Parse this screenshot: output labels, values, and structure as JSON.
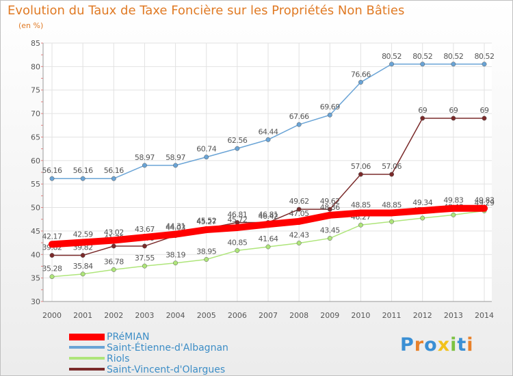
{
  "chart_data": {
    "type": "line",
    "title": "Evolution du Taux de Taxe Foncière sur les Propriétés Non Bâties",
    "subtitle": "(en %)",
    "xlabel": "",
    "ylabel": "",
    "x": [
      "2000",
      "2001",
      "2002",
      "2003",
      "2004",
      "2005",
      "2006",
      "2007",
      "2008",
      "2009",
      "2010",
      "2011",
      "2012",
      "2013",
      "2014"
    ],
    "ylim": [
      30,
      85
    ],
    "yticks": [
      30,
      35,
      40,
      45,
      50,
      55,
      60,
      65,
      70,
      75,
      80,
      85
    ],
    "grid": true,
    "legend_position": "bottom-left",
    "series": [
      {
        "name": "PRéMIAN",
        "color": "#ff0000",
        "emphasis": true,
        "values": [
          42.17,
          42.59,
          43.02,
          43.67,
          44.31,
          45.27,
          45.72,
          46.42,
          47.05,
          48.36,
          48.85,
          48.85,
          49.34,
          49.83,
          49.83
        ]
      },
      {
        "name": "Saint-Étienne-d'Albagnan",
        "color": "#6aa4d6",
        "values": [
          56.16,
          56.16,
          56.16,
          58.97,
          58.97,
          60.74,
          62.56,
          64.44,
          67.66,
          69.69,
          76.66,
          80.52,
          80.52,
          80.52,
          80.52
        ]
      },
      {
        "name": "Riols",
        "color": "#aee57a",
        "values": [
          35.28,
          35.84,
          36.78,
          37.55,
          38.19,
          38.95,
          40.85,
          41.64,
          42.43,
          43.45,
          46.27,
          47.0,
          47.75,
          48.43,
          49.29
        ]
      },
      {
        "name": "Saint-Vincent-d'Olargues",
        "color": "#7a2a2a",
        "values": [
          39.82,
          39.82,
          41.79,
          41.79,
          44.03,
          45.52,
          46.81,
          46.81,
          49.62,
          49.62,
          57.06,
          57.06,
          69,
          69,
          69
        ]
      }
    ]
  },
  "legend": [
    {
      "label": "PRéMIAN",
      "color": "#ff0000"
    },
    {
      "label": "Saint-Étienne-d'Albagnan",
      "color": "#6aa4d6"
    },
    {
      "label": "Riols",
      "color": "#aee57a"
    },
    {
      "label": "Saint-Vincent-d'Olargues",
      "color": "#7a2a2a"
    }
  ],
  "logo": {
    "text": "Proxiti",
    "letters": [
      {
        "ch": "P",
        "color": "#3a8fd4"
      },
      {
        "ch": "r",
        "color": "#e8812a"
      },
      {
        "ch": "o",
        "color": "#3a8fd4"
      },
      {
        "ch": "x",
        "color": "#f2c21b"
      },
      {
        "ch": "i",
        "color": "#7cc242"
      },
      {
        "ch": "t",
        "color": "#3a8fd4"
      },
      {
        "ch": "i",
        "color": "#e8812a"
      }
    ]
  }
}
